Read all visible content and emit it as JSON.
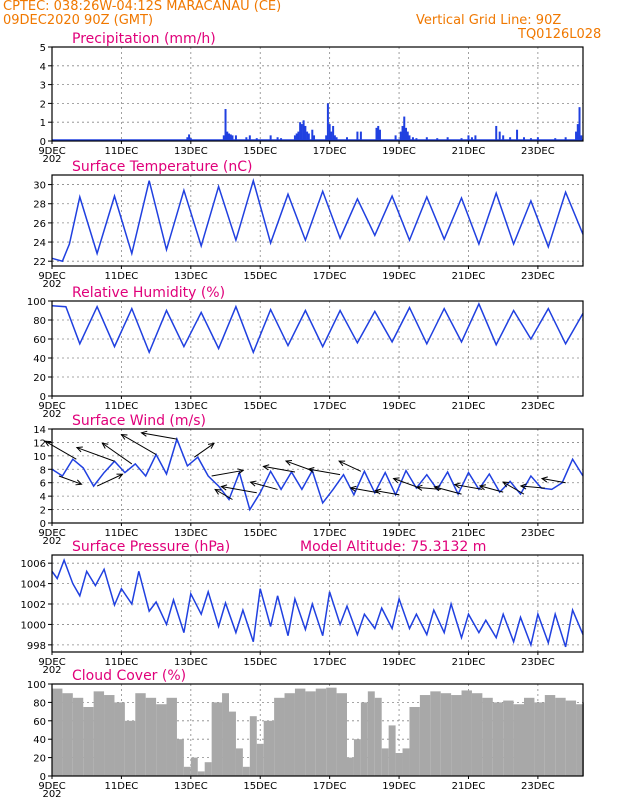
{
  "header": {
    "line1_left": "CPTEC:   038:26W-04:12S   MARACANAU (CE)",
    "line2_left": "09DEC2020 90Z (GMT)",
    "line1_right": "Vertical Grid Line: 90Z",
    "line2_right": "TQ0126L028"
  },
  "colors": {
    "header": "#f07800",
    "title": "#e0007a",
    "line": "#2040e0",
    "cloud": "#a8a8a8",
    "arrow": "#000000"
  },
  "x_axis": {
    "tick_labels": [
      "9DEC",
      "11DEC",
      "13DEC",
      "15DEC",
      "17DEC",
      "19DEC",
      "21DEC",
      "23DEC"
    ],
    "tick_days": [
      0,
      2,
      4,
      6,
      8,
      10,
      12,
      14
    ],
    "range_days": [
      0,
      15.3
    ],
    "first_sublabel": "202"
  },
  "chart_data": [
    {
      "id": "precip",
      "type": "bar",
      "title": "Precipitation (mm/h)",
      "ylim": [
        0,
        5
      ],
      "yticks": [
        0,
        1,
        2,
        3,
        4,
        5
      ],
      "points": [
        [
          3.9,
          0.2
        ],
        [
          3.95,
          0.35
        ],
        [
          4.0,
          0.15
        ],
        [
          4.95,
          0.3
        ],
        [
          5.0,
          1.7
        ],
        [
          5.05,
          0.5
        ],
        [
          5.1,
          0.4
        ],
        [
          5.15,
          0.35
        ],
        [
          5.2,
          0.3
        ],
        [
          5.3,
          0.3
        ],
        [
          5.6,
          0.2
        ],
        [
          5.7,
          0.3
        ],
        [
          5.9,
          0.15
        ],
        [
          6.3,
          0.3
        ],
        [
          6.5,
          0.2
        ],
        [
          6.6,
          0.15
        ],
        [
          7.0,
          0.3
        ],
        [
          7.05,
          0.4
        ],
        [
          7.1,
          0.5
        ],
        [
          7.15,
          1.0
        ],
        [
          7.2,
          0.9
        ],
        [
          7.25,
          1.1
        ],
        [
          7.3,
          0.8
        ],
        [
          7.35,
          0.5
        ],
        [
          7.4,
          0.4
        ],
        [
          7.5,
          0.6
        ],
        [
          7.55,
          0.3
        ],
        [
          7.9,
          0.3
        ],
        [
          7.95,
          2.0
        ],
        [
          8.0,
          0.9
        ],
        [
          8.05,
          0.5
        ],
        [
          8.1,
          0.8
        ],
        [
          8.15,
          0.3
        ],
        [
          8.2,
          0.2
        ],
        [
          8.5,
          0.2
        ],
        [
          8.8,
          0.5
        ],
        [
          8.9,
          0.5
        ],
        [
          9.35,
          0.7
        ],
        [
          9.4,
          0.8
        ],
        [
          9.45,
          0.6
        ],
        [
          9.9,
          0.3
        ],
        [
          10.05,
          0.5
        ],
        [
          10.1,
          0.8
        ],
        [
          10.15,
          1.3
        ],
        [
          10.2,
          0.7
        ],
        [
          10.25,
          0.5
        ],
        [
          10.3,
          0.3
        ],
        [
          10.4,
          0.2
        ],
        [
          10.5,
          0.15
        ],
        [
          10.8,
          0.2
        ],
        [
          11.1,
          0.15
        ],
        [
          11.4,
          0.2
        ],
        [
          11.8,
          0.15
        ],
        [
          12.0,
          0.3
        ],
        [
          12.1,
          0.2
        ],
        [
          12.2,
          0.3
        ],
        [
          12.8,
          0.8
        ],
        [
          12.9,
          0.5
        ],
        [
          13.0,
          0.3
        ],
        [
          13.2,
          0.2
        ],
        [
          13.4,
          0.6
        ],
        [
          13.6,
          0.2
        ],
        [
          13.8,
          0.15
        ],
        [
          14.0,
          0.2
        ],
        [
          14.5,
          0.15
        ],
        [
          14.8,
          0.2
        ],
        [
          15.1,
          0.5
        ],
        [
          15.15,
          0.9
        ],
        [
          15.2,
          1.8
        ],
        [
          15.25,
          0.3
        ]
      ]
    },
    {
      "id": "temp",
      "type": "line",
      "title": "Surface Temperature (nC)",
      "ylim": [
        21.5,
        31
      ],
      "yticks": [
        22,
        24,
        26,
        28,
        30
      ],
      "points": [
        [
          0.0,
          22.3
        ],
        [
          0.3,
          22.0
        ],
        [
          0.5,
          23.8
        ],
        [
          0.8,
          28.7
        ],
        [
          1.3,
          22.8
        ],
        [
          1.8,
          28.8
        ],
        [
          2.3,
          22.8
        ],
        [
          2.8,
          30.4
        ],
        [
          3.3,
          23.2
        ],
        [
          3.8,
          29.4
        ],
        [
          4.3,
          23.6
        ],
        [
          4.8,
          29.8
        ],
        [
          5.3,
          24.2
        ],
        [
          5.8,
          30.4
        ],
        [
          6.3,
          23.9
        ],
        [
          6.8,
          29.0
        ],
        [
          7.3,
          24.2
        ],
        [
          7.8,
          29.3
        ],
        [
          8.3,
          24.4
        ],
        [
          8.8,
          28.5
        ],
        [
          9.3,
          24.7
        ],
        [
          9.8,
          28.8
        ],
        [
          10.3,
          24.2
        ],
        [
          10.8,
          28.7
        ],
        [
          11.3,
          24.3
        ],
        [
          11.8,
          28.6
        ],
        [
          12.3,
          23.8
        ],
        [
          12.8,
          29.1
        ],
        [
          13.3,
          23.8
        ],
        [
          13.8,
          28.3
        ],
        [
          14.3,
          23.5
        ],
        [
          14.8,
          29.2
        ],
        [
          15.3,
          24.8
        ]
      ]
    },
    {
      "id": "rh",
      "type": "line",
      "title": "Relative Humidity (%)",
      "ylim": [
        0,
        100
      ],
      "yticks": [
        0,
        20,
        40,
        60,
        80,
        100
      ],
      "points": [
        [
          0.0,
          95
        ],
        [
          0.4,
          94
        ],
        [
          0.8,
          55
        ],
        [
          1.3,
          94
        ],
        [
          1.8,
          52
        ],
        [
          2.3,
          92
        ],
        [
          2.8,
          46
        ],
        [
          3.3,
          90
        ],
        [
          3.8,
          52
        ],
        [
          4.3,
          88
        ],
        [
          4.8,
          50
        ],
        [
          5.3,
          94
        ],
        [
          5.8,
          46
        ],
        [
          6.3,
          91
        ],
        [
          6.8,
          53
        ],
        [
          7.3,
          90
        ],
        [
          7.8,
          52
        ],
        [
          8.3,
          90
        ],
        [
          8.8,
          56
        ],
        [
          9.3,
          89
        ],
        [
          9.8,
          57
        ],
        [
          10.3,
          93
        ],
        [
          10.8,
          55
        ],
        [
          11.3,
          92
        ],
        [
          11.8,
          57
        ],
        [
          12.3,
          97
        ],
        [
          12.8,
          54
        ],
        [
          13.3,
          90
        ],
        [
          13.8,
          60
        ],
        [
          14.3,
          92
        ],
        [
          14.8,
          55
        ],
        [
          15.3,
          87
        ]
      ]
    },
    {
      "id": "wind",
      "type": "line",
      "title": "Surface Wind (m/s)",
      "ylim": [
        0,
        14
      ],
      "yticks": [
        0,
        2,
        4,
        6,
        8,
        10,
        12,
        14
      ],
      "points": [
        [
          0.0,
          8.0
        ],
        [
          0.3,
          7.0
        ],
        [
          0.6,
          9.5
        ],
        [
          0.9,
          8.2
        ],
        [
          1.2,
          5.5
        ],
        [
          1.5,
          7.5
        ],
        [
          1.8,
          9.2
        ],
        [
          2.1,
          7.5
        ],
        [
          2.4,
          8.8
        ],
        [
          2.7,
          7.0
        ],
        [
          3.0,
          10.2
        ],
        [
          3.3,
          7.3
        ],
        [
          3.6,
          12.5
        ],
        [
          3.9,
          8.5
        ],
        [
          4.2,
          9.8
        ],
        [
          4.5,
          7.0
        ],
        [
          4.8,
          5.5
        ],
        [
          5.1,
          3.5
        ],
        [
          5.4,
          7.5
        ],
        [
          5.7,
          2.0
        ],
        [
          6.0,
          4.5
        ],
        [
          6.3,
          7.7
        ],
        [
          6.6,
          5.0
        ],
        [
          6.9,
          7.6
        ],
        [
          7.2,
          5.0
        ],
        [
          7.5,
          7.8
        ],
        [
          7.8,
          3.0
        ],
        [
          8.1,
          5.0
        ],
        [
          8.4,
          7.2
        ],
        [
          8.7,
          4.2
        ],
        [
          9.0,
          7.7
        ],
        [
          9.3,
          4.5
        ],
        [
          9.6,
          7.5
        ],
        [
          9.9,
          4.2
        ],
        [
          10.2,
          7.8
        ],
        [
          10.5,
          5.2
        ],
        [
          10.8,
          7.2
        ],
        [
          11.1,
          5.0
        ],
        [
          11.4,
          7.6
        ],
        [
          11.7,
          4.3
        ],
        [
          12.0,
          7.5
        ],
        [
          12.3,
          5.0
        ],
        [
          12.6,
          7.3
        ],
        [
          12.9,
          4.6
        ],
        [
          13.2,
          6.2
        ],
        [
          13.5,
          4.3
        ],
        [
          13.8,
          7.0
        ],
        [
          14.1,
          5.2
        ],
        [
          14.4,
          5.0
        ],
        [
          14.7,
          6.0
        ],
        [
          15.0,
          9.5
        ],
        [
          15.3,
          7.0
        ]
      ],
      "vectors": [
        [
          0.2,
          -20,
          0.6
        ],
        [
          0.7,
          150,
          0.9
        ],
        [
          1.3,
          25,
          0.7
        ],
        [
          1.8,
          160,
          1.0
        ],
        [
          2.3,
          145,
          0.9
        ],
        [
          3.0,
          150,
          1.0
        ],
        [
          3.6,
          170,
          0.9
        ],
        [
          4.1,
          35,
          0.6
        ],
        [
          4.6,
          10,
          0.8
        ],
        [
          5.2,
          150,
          0.5
        ],
        [
          5.9,
          170,
          0.9
        ],
        [
          6.5,
          165,
          0.7
        ],
        [
          7.0,
          170,
          0.8
        ],
        [
          7.5,
          160,
          0.7
        ],
        [
          8.3,
          170,
          0.8
        ],
        [
          8.9,
          155,
          0.6
        ],
        [
          9.4,
          170,
          0.7
        ],
        [
          10.0,
          170,
          0.6
        ],
        [
          10.6,
          160,
          0.7
        ],
        [
          11.2,
          175,
          0.6
        ],
        [
          11.8,
          165,
          0.7
        ],
        [
          12.4,
          170,
          0.7
        ],
        [
          13.0,
          165,
          0.6
        ],
        [
          13.6,
          150,
          0.6
        ],
        [
          14.2,
          175,
          0.6
        ],
        [
          14.8,
          170,
          0.6
        ]
      ]
    },
    {
      "id": "press",
      "type": "line",
      "title": "Surface Pressure (hPa)",
      "annotation": "Model Altitude: 75.3132 m",
      "ylim": [
        997.3,
        1006.8
      ],
      "yticks": [
        998,
        1000,
        1002,
        1004,
        1006
      ],
      "points": [
        [
          0.0,
          1005.2
        ],
        [
          0.15,
          1004.5
        ],
        [
          0.35,
          1006.3
        ],
        [
          0.6,
          1004.0
        ],
        [
          0.8,
          1002.8
        ],
        [
          1.0,
          1005.2
        ],
        [
          1.25,
          1003.8
        ],
        [
          1.5,
          1005.4
        ],
        [
          1.8,
          1001.9
        ],
        [
          2.0,
          1003.5
        ],
        [
          2.3,
          1002.0
        ],
        [
          2.5,
          1005.2
        ],
        [
          2.8,
          1001.3
        ],
        [
          3.0,
          1002.2
        ],
        [
          3.3,
          1000.0
        ],
        [
          3.5,
          1002.4
        ],
        [
          3.8,
          999.2
        ],
        [
          4.0,
          1003.0
        ],
        [
          4.3,
          1001.0
        ],
        [
          4.5,
          1003.2
        ],
        [
          4.8,
          999.8
        ],
        [
          5.0,
          1002.1
        ],
        [
          5.3,
          999.2
        ],
        [
          5.5,
          1001.4
        ],
        [
          5.8,
          998.3
        ],
        [
          6.0,
          1003.5
        ],
        [
          6.3,
          999.8
        ],
        [
          6.5,
          1002.8
        ],
        [
          6.8,
          998.9
        ],
        [
          7.0,
          1002.5
        ],
        [
          7.3,
          999.5
        ],
        [
          7.5,
          1002.0
        ],
        [
          7.8,
          998.9
        ],
        [
          8.0,
          1003.2
        ],
        [
          8.3,
          1000.0
        ],
        [
          8.5,
          1001.8
        ],
        [
          8.8,
          999.0
        ],
        [
          9.0,
          1001.0
        ],
        [
          9.3,
          999.6
        ],
        [
          9.5,
          1001.6
        ],
        [
          9.8,
          999.6
        ],
        [
          10.0,
          1002.5
        ],
        [
          10.3,
          999.6
        ],
        [
          10.5,
          1001.0
        ],
        [
          10.8,
          999.0
        ],
        [
          11.0,
          1001.4
        ],
        [
          11.3,
          999.2
        ],
        [
          11.5,
          1002.0
        ],
        [
          11.8,
          998.7
        ],
        [
          12.0,
          1001.0
        ],
        [
          12.3,
          999.2
        ],
        [
          12.5,
          1000.4
        ],
        [
          12.8,
          998.7
        ],
        [
          13.0,
          1001.0
        ],
        [
          13.3,
          998.3
        ],
        [
          13.5,
          1000.7
        ],
        [
          13.8,
          998.0
        ],
        [
          14.0,
          1001.0
        ],
        [
          14.3,
          998.2
        ],
        [
          14.5,
          1001.0
        ],
        [
          14.8,
          997.8
        ],
        [
          15.0,
          1001.4
        ],
        [
          15.3,
          999.0
        ]
      ]
    },
    {
      "id": "cloud",
      "type": "area",
      "title": "Cloud Cover (%)",
      "ylim": [
        0,
        100
      ],
      "yticks": [
        0,
        20,
        40,
        60,
        80,
        100
      ],
      "points": [
        [
          0.0,
          95
        ],
        [
          0.3,
          90
        ],
        [
          0.6,
          85
        ],
        [
          0.9,
          75
        ],
        [
          1.2,
          92
        ],
        [
          1.5,
          88
        ],
        [
          1.8,
          80
        ],
        [
          2.1,
          60
        ],
        [
          2.4,
          90
        ],
        [
          2.7,
          85
        ],
        [
          3.0,
          78
        ],
        [
          3.3,
          85
        ],
        [
          3.6,
          40
        ],
        [
          3.8,
          10
        ],
        [
          4.0,
          20
        ],
        [
          4.2,
          5
        ],
        [
          4.4,
          15
        ],
        [
          4.6,
          80
        ],
        [
          4.9,
          90
        ],
        [
          5.1,
          70
        ],
        [
          5.3,
          30
        ],
        [
          5.5,
          10
        ],
        [
          5.7,
          65
        ],
        [
          5.9,
          35
        ],
        [
          6.1,
          60
        ],
        [
          6.4,
          85
        ],
        [
          6.7,
          90
        ],
        [
          7.0,
          95
        ],
        [
          7.3,
          92
        ],
        [
          7.6,
          95
        ],
        [
          7.9,
          96
        ],
        [
          8.2,
          90
        ],
        [
          8.5,
          20
        ],
        [
          8.7,
          40
        ],
        [
          8.9,
          80
        ],
        [
          9.1,
          92
        ],
        [
          9.3,
          85
        ],
        [
          9.5,
          30
        ],
        [
          9.7,
          55
        ],
        [
          9.9,
          25
        ],
        [
          10.1,
          30
        ],
        [
          10.3,
          75
        ],
        [
          10.6,
          88
        ],
        [
          10.9,
          92
        ],
        [
          11.2,
          90
        ],
        [
          11.5,
          88
        ],
        [
          11.8,
          93
        ],
        [
          12.1,
          90
        ],
        [
          12.4,
          85
        ],
        [
          12.7,
          80
        ],
        [
          13.0,
          82
        ],
        [
          13.3,
          78
        ],
        [
          13.6,
          85
        ],
        [
          13.9,
          80
        ],
        [
          14.2,
          88
        ],
        [
          14.5,
          85
        ],
        [
          14.8,
          82
        ],
        [
          15.1,
          78
        ],
        [
          15.3,
          80
        ]
      ]
    }
  ]
}
